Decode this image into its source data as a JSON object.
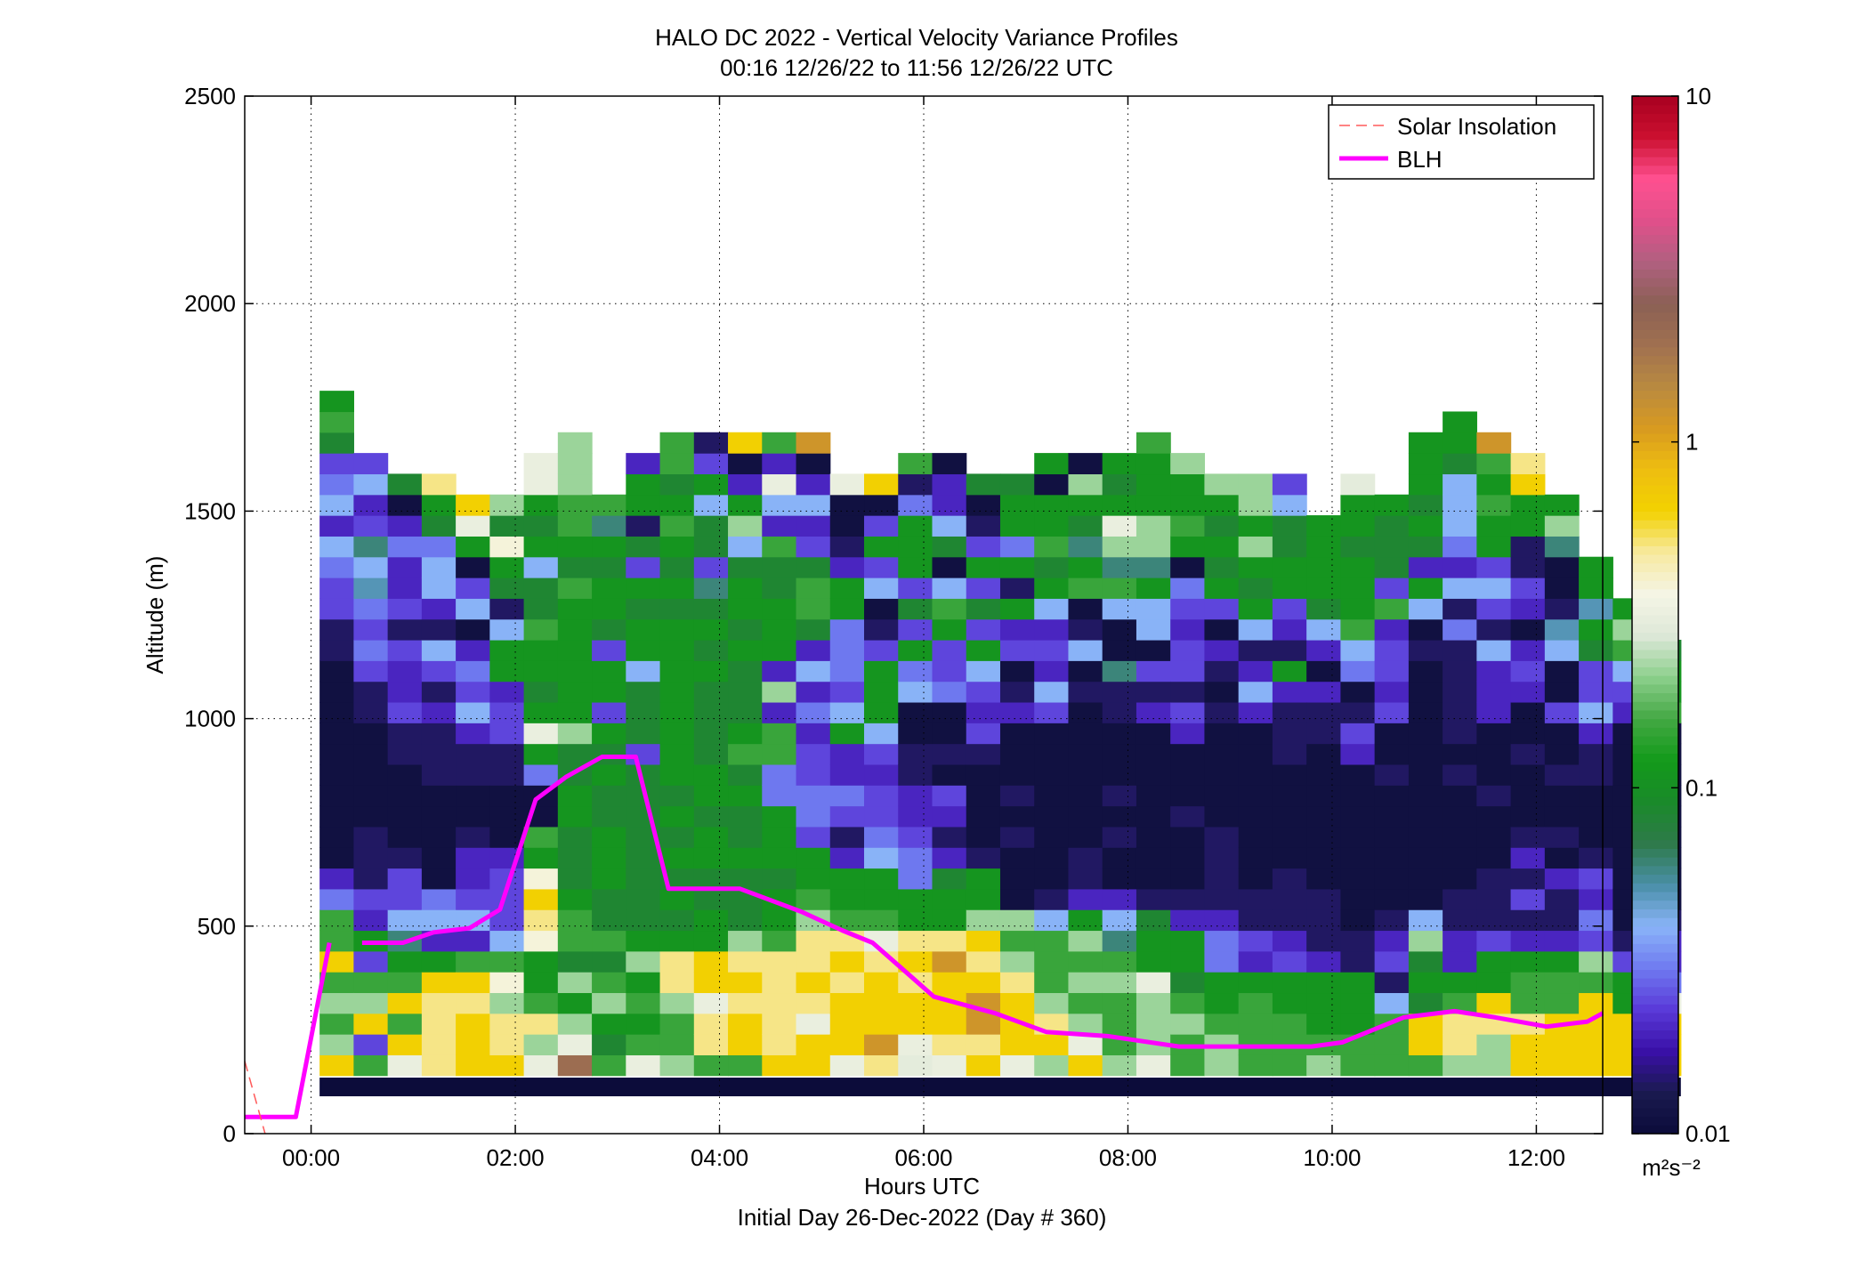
{
  "chart_data": {
    "type": "heatmap",
    "title": "HALO DC 2022 - Vertical Velocity Variance Profiles",
    "subtitle": "00:16 12/26/22 to 11:56 12/26/22  UTC",
    "xlabel": "Hours UTC",
    "xlabel2": "Initial Day 26-Dec-2022 (Day # 360)",
    "ylabel": "Altitude (m)",
    "xlim": [
      -0.65,
      12.65
    ],
    "ylim": [
      0,
      2500
    ],
    "x_ticks": [
      {
        "value": 0,
        "label": "00:00"
      },
      {
        "value": 2,
        "label": "02:00"
      },
      {
        "value": 4,
        "label": "04:00"
      },
      {
        "value": 6,
        "label": "06:00"
      },
      {
        "value": 8,
        "label": "08:00"
      },
      {
        "value": 10,
        "label": "10:00"
      },
      {
        "value": 12,
        "label": "12:00"
      }
    ],
    "y_ticks": [
      {
        "value": 0,
        "label": "0"
      },
      {
        "value": 500,
        "label": "500"
      },
      {
        "value": 1000,
        "label": "1000"
      },
      {
        "value": 1500,
        "label": "1500"
      },
      {
        "value": 2000,
        "label": "2000"
      },
      {
        "value": 2500,
        "label": "2500"
      }
    ],
    "grid": true,
    "colorbar": {
      "scale": "log",
      "range": [
        0.01,
        10
      ],
      "units_label": "m²s⁻²",
      "ticks": [
        {
          "value": 0.01,
          "label": "0.01"
        },
        {
          "value": 0.1,
          "label": "0.1"
        },
        {
          "value": 1,
          "label": "1"
        },
        {
          "value": 10,
          "label": "10"
        }
      ],
      "colors": [
        "#0c0c3a",
        "#1a1a4f",
        "#3a10a8",
        "#5a3ad8",
        "#6f7af0",
        "#8ab4f8",
        "#4a8fa8",
        "#2e7a4a",
        "#1a8a2a",
        "#139a1a",
        "#43a843",
        "#8ccf8c",
        "#dde8d8",
        "#f5f5e5",
        "#f7e9a0",
        "#f2d200",
        "#eebe10",
        "#d89a20",
        "#b98a40",
        "#a07050",
        "#8b6055",
        "#b06080",
        "#e0508a",
        "#ff5090",
        "#cc1030",
        "#a80020"
      ]
    },
    "heatmap": {
      "x_start": 0.25,
      "x_step": 0.3333,
      "altitude_start": 165,
      "altitude_step": 50,
      "floor_band": {
        "altitude_bottom": 90,
        "altitude_top": 135,
        "variance": 0.01
      },
      "legend_codes": {
        "a": 0.011,
        "b": 0.014,
        "c": 0.02,
        "d": 0.024,
        "e": 0.03,
        "f": 0.04,
        "g": 0.05,
        "h": 0.06,
        "i": 0.07,
        "j": 0.085,
        "k": 0.11,
        "l": 0.15,
        "m": 0.22,
        "n": 0.32,
        "o": 0.38,
        "p": 0.5,
        "q": 0.65,
        "r": 1.2,
        "s": 2.0,
        "t": 0.3
      },
      "columns": [
        "qmlmlqllecaaaaaaaaaabbddefcfedjlk",
        "ldqmldkcdbbbaaaaabbdedegfhdcfd",
        "nqlqlkhfddbaaaabbdccdbdccecaj",
        "ppppqkcfeaaaaabbbcbdfbcffejkp",
        "qqqpqlcfdccbaabbcfdecafdaknq",
        "qppmolfdddcaaabbddckkfbjkojm",
        "nmplkkopqoklaaeknkjkkljjfkjknn",
        "snmkmjllkjjjkkjjmkkkkkkljkllmmm",
        "ljkmljljjkkkjjkjkdkkdjkkjkhl",
        "nlklkmkjjjjjjjjdjjjfkkjkdjbkkc",
        "mllmppkjkjkjkjkkkkkkkkjkjklkjll",
        "lppnqqkkjjkkjkkjjjjkjkjhdjjfkdb",
        "lqqpqpmjjjkjjkjlkjjjkjkkjfmkcaq",
        "qppppplkkjkkkeellcmckkkjjlcfncl",
        "qqnpqppmlkkdeeddcecfcjlljdcfcar",
        "nqqqpqplkkcbdecckfdeeekkcbaan",
        "prqqqpnlkkfeddcdfkkkdbafdkdaq",
        "tnqqpqpkkeedccbbaafekdjdkkkebl",
        "npqqqrpkkjcbcdabaaeddklfajfcca",
        "qprrqpqmkkbaaaabdcdfkdjdkdbaj",
        "nqqqpmlmaaababaaacbadckbkekkj",
        "mqpmlllfbaaaaaaaadfcdcfkjlkkak",
        "qnmlmlmkcbbaaaaaaabafbalkhjkma",
        "mlllmlhfcaababaaabbhaaflhmnkjk",
        "nmmmnkkjbaaaaaaaacbdaffkhmmkkkl",
        "llmljkkcbaaabaaacdbddcdeaklkkm",
        "mmlkkeecbbbbaaaaababcadkjkjkm",
        "llllkcdbbaaaaaaaacfcbfkjkmkmm",
        "lllkkdcbbbaaaaabbbckbcdkkjjfd",
        "mlkkkcbbbaaaaaaabbcacfjkkkk",
        "llkkkbbaaaaaaaacdbaeflkkkjkkt",
        "lllfbdcbaaaaaabaadcddcldjjjk",
        "lqqjkjmfaaaaaaaaaaaabafkcjkjkkk",
        "mpplkccbbaaaaababbbbbebfcefffjkk",
        "mmpqkkdbbbaaabaaacccfbdfdkklklr",
        "qqpllkcbdbcbaaabaacdcacdbbkkqp",
        "qqqllkcbbcabaabaadaafgbaahmk",
        "qqqqlmdecdbaaabbcfddjkgkk",
        "qqqkkdbaaaaaaaaaacdflmk",
        "qqqneccbaaaaaaaaalkkj"
      ]
    },
    "series": [
      {
        "name": "BLH",
        "color": "#ff00ff",
        "points": [
          [
            -0.65,
            40
          ],
          [
            -0.15,
            40
          ],
          [
            0.18,
            460
          ],
          [
            null,
            null
          ],
          [
            0.5,
            460
          ],
          [
            0.9,
            460
          ],
          [
            1.2,
            485
          ],
          [
            1.55,
            495
          ],
          [
            1.85,
            540
          ],
          [
            2.2,
            805
          ],
          [
            2.5,
            860
          ],
          [
            2.85,
            908
          ],
          [
            3.18,
            908
          ],
          [
            3.5,
            590
          ],
          [
            4.2,
            590
          ],
          [
            4.8,
            535
          ],
          [
            5.2,
            490
          ],
          [
            5.5,
            460
          ],
          [
            6.1,
            330
          ],
          [
            6.7,
            290
          ],
          [
            7.2,
            245
          ],
          [
            7.8,
            235
          ],
          [
            8.5,
            210
          ],
          [
            9.2,
            210
          ],
          [
            9.8,
            210
          ],
          [
            10.1,
            220
          ],
          [
            10.7,
            280
          ],
          [
            11.2,
            295
          ],
          [
            11.6,
            280
          ],
          [
            12.1,
            258
          ],
          [
            12.5,
            270
          ],
          [
            12.65,
            290
          ]
        ]
      },
      {
        "name": "Solar Insolation",
        "color": "#ff5a5a",
        "dashed": true,
        "points": [
          [
            -0.65,
            175
          ],
          [
            -0.45,
            0
          ]
        ]
      }
    ],
    "legend_position": "top-right"
  }
}
